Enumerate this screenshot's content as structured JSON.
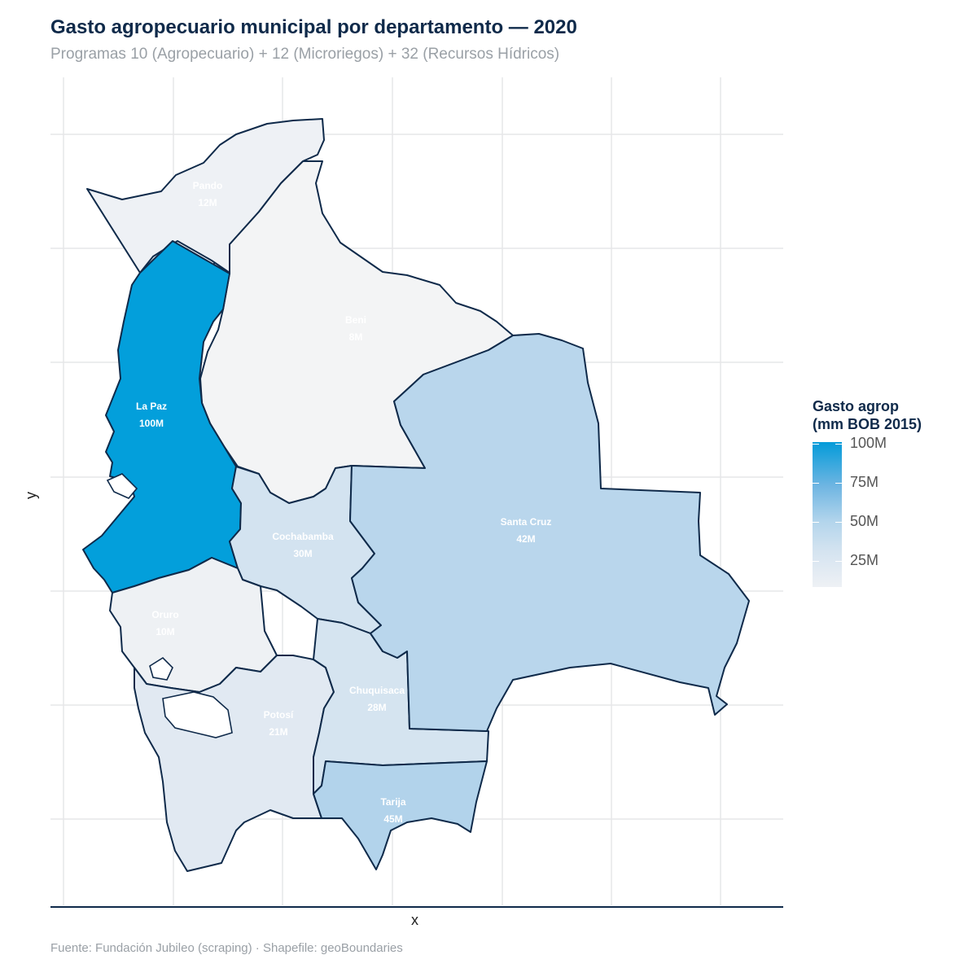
{
  "title": "Gasto agropecuario municipal por departamento — 2020",
  "subtitle": "Programas 10 (Agropecuario) + 12 (Microriegos) + 32 (Recursos Hídricos)",
  "caption": "Fuente: Fundación Jubileo (scraping) · Shapefile: geoBoundaries",
  "axis": {
    "x_label": "x",
    "y_label": "y"
  },
  "legend": {
    "title": "Gasto agrop\n(mm BOB 2015)",
    "ticks": [
      "100M",
      "75M",
      "50M",
      "25M"
    ],
    "colors": {
      "high": "#039bd9",
      "low": "#eef1f5"
    }
  },
  "map": {
    "border_color": "#0f2a4a",
    "departments": [
      {
        "name": "Pando",
        "value_label": "12M",
        "value": 12,
        "fill": "#eef1f5"
      },
      {
        "name": "Beni",
        "value_label": "8M",
        "value": 8,
        "fill": "#f3f4f5"
      },
      {
        "name": "La Paz",
        "value_label": "100M",
        "value": 100,
        "fill": "#039fdb"
      },
      {
        "name": "Santa Cruz",
        "value_label": "42M",
        "value": 42,
        "fill": "#b9d6ec"
      },
      {
        "name": "Cochabamba",
        "value_label": "30M",
        "value": 30,
        "fill": "#d3e3f0"
      },
      {
        "name": "Oruro",
        "value_label": "10M",
        "value": 10,
        "fill": "#eef1f4"
      },
      {
        "name": "Potosí",
        "value_label": "21M",
        "value": 21,
        "fill": "#e1e9f2"
      },
      {
        "name": "Chuquisaca",
        "value_label": "28M",
        "value": 28,
        "fill": "#d5e4f0"
      },
      {
        "name": "Tarija",
        "value_label": "45M",
        "value": 45,
        "fill": "#b2d3eb"
      }
    ]
  }
}
